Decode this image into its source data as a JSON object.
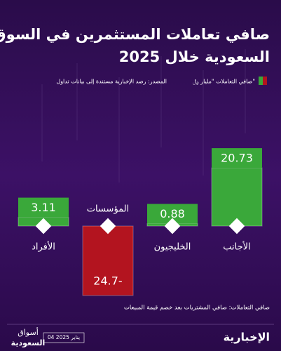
{
  "chart_data": {
    "type": "bar",
    "title": "صافي تعاملات المستثمرين في السوق",
    "subtitle": "السعودية خلال 2025",
    "legend_label": "صافي التعاملات \"مليار ﷼\"",
    "source": "المصدر: رصد الإخبارية مستندة إلى بيانات تداول",
    "note": "صافي التعاملات: صافي المشتريات بعد خصم قيمة المبيعات",
    "categories": [
      "الأجانب",
      "الخليجيون",
      "المؤسسات",
      "الأفراد"
    ],
    "values": [
      20.73,
      0.88,
      -24.7,
      3.11
    ],
    "value_labels": [
      "20.73",
      "0.88",
      "24.7-",
      "3.11"
    ],
    "positive_color": "#3aa83a",
    "negative_color": "#b3141f",
    "footer": {
      "date": "04 يناير 2025",
      "brand_left_1": "أسواق",
      "brand_left_2": "السعودية",
      "brand_right": "الإخبارية"
    }
  }
}
